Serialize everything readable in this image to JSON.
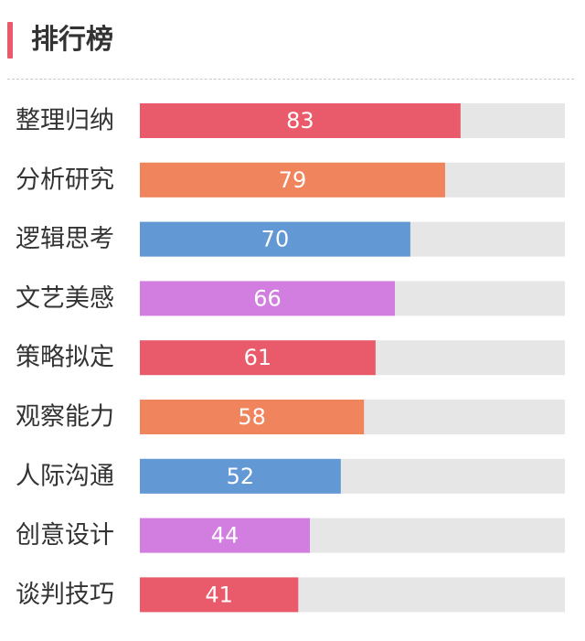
{
  "header": {
    "title": "排行榜",
    "accent_color": "#e95b6b"
  },
  "chart_data": {
    "type": "bar",
    "orientation": "horizontal",
    "categories": [
      "整理归纳",
      "分析研究",
      "逻辑思考",
      "文艺美感",
      "策略拟定",
      "观察能力",
      "人际沟通",
      "创意设计",
      "谈判技巧"
    ],
    "values": [
      83,
      79,
      70,
      66,
      61,
      58,
      52,
      44,
      41
    ],
    "xlim": [
      0,
      110
    ],
    "colors": [
      "#e95b6b",
      "#f0845c",
      "#6298d4",
      "#d17ee0",
      "#e95b6b",
      "#f0845c",
      "#6298d4",
      "#d17ee0",
      "#e95b6b"
    ],
    "track_color": "#e6e6e6",
    "grid": false,
    "value_labels": true
  }
}
